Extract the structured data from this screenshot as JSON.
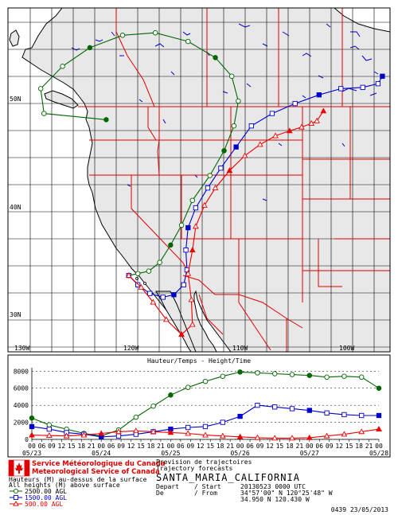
{
  "map": {
    "lat_labels": [
      {
        "text": "50N",
        "lat": 50
      },
      {
        "text": "40N",
        "lat": 40
      },
      {
        "text": "30N",
        "lat": 30
      }
    ],
    "lon_labels": [
      {
        "text": "130W",
        "lon": -130
      },
      {
        "text": "120W",
        "lon": -120
      },
      {
        "text": "110W",
        "lon": -110
      },
      {
        "text": "100W",
        "lon": -100
      }
    ],
    "colors": {
      "land": "#e8e8e8",
      "water": "#ffffff",
      "coast": "#000000",
      "state": "#e00000",
      "grid": "#000000",
      "lake": "#0000cc"
    }
  },
  "chart_data": {
    "type": "trajectory",
    "title": "Hauteur/Temps - Height/Time",
    "yticks": [
      0,
      2000,
      4000,
      6000,
      8000
    ],
    "ylim": [
      0,
      8400
    ],
    "xlim": [
      0,
      120
    ],
    "xticks": [
      "00",
      "06",
      "09",
      "12",
      "15",
      "18",
      "21",
      "00",
      "06",
      "09",
      "12",
      "15",
      "18",
      "21",
      "00",
      "06",
      "09",
      "12",
      "15",
      "18",
      "21",
      "00",
      "06",
      "09",
      "12",
      "15",
      "18",
      "21",
      "00",
      "06",
      "09",
      "12",
      "15",
      "18",
      "21",
      "00"
    ],
    "date_labels": [
      {
        "text": "05/23",
        "hour": 0
      },
      {
        "text": "05/24",
        "hour": 24
      },
      {
        "text": "05/25",
        "hour": 48
      },
      {
        "text": "05/26",
        "hour": 72
      },
      {
        "text": "05/27",
        "hour": 96
      },
      {
        "text": "05/28",
        "hour": 120
      }
    ],
    "series": [
      {
        "name": "2500.00 AGL",
        "color": "#006600",
        "marker": "circle",
        "hours": [
          0,
          6,
          12,
          18,
          24,
          30,
          36,
          42,
          48,
          54,
          60,
          66,
          72,
          78,
          84,
          90,
          96,
          102,
          108,
          114,
          120
        ],
        "heights": [
          2500,
          1700,
          1200,
          700,
          400,
          1100,
          2600,
          3900,
          5200,
          6100,
          6800,
          7400,
          7900,
          7800,
          7700,
          7600,
          7500,
          7300,
          7400,
          7300,
          6000
        ],
        "track": [
          [
            34.95,
            -120.43
          ],
          [
            35.1,
            -119.6
          ],
          [
            35.3,
            -118.6
          ],
          [
            36.0,
            -117.6
          ],
          [
            37.4,
            -116.6
          ],
          [
            39.0,
            -115.6
          ],
          [
            41.0,
            -114.6
          ],
          [
            43.0,
            -113.0
          ],
          [
            45.0,
            -111.7
          ],
          [
            47.0,
            -110.8
          ],
          [
            49.0,
            -110.4
          ],
          [
            51.0,
            -111.0
          ],
          [
            52.5,
            -112.5
          ],
          [
            53.8,
            -115.0
          ],
          [
            54.5,
            -118.0
          ],
          [
            54.3,
            -121.0
          ],
          [
            53.3,
            -124.0
          ],
          [
            51.8,
            -126.5
          ],
          [
            50.0,
            -128.5
          ],
          [
            48.0,
            -128.2
          ],
          [
            47.5,
            -122.5
          ]
        ]
      },
      {
        "name": "1500.00 AGL",
        "color": "#0000cc",
        "marker": "square",
        "hours": [
          0,
          6,
          12,
          18,
          24,
          30,
          36,
          42,
          48,
          54,
          60,
          66,
          72,
          78,
          84,
          90,
          96,
          102,
          108,
          114,
          120
        ],
        "heights": [
          1500,
          1200,
          800,
          600,
          300,
          400,
          600,
          900,
          1200,
          1400,
          1500,
          2000,
          2700,
          4000,
          3800,
          3600,
          3400,
          3100,
          2900,
          2800,
          2800
        ],
        "track": [
          [
            34.95,
            -120.43
          ],
          [
            34.2,
            -119.6
          ],
          [
            33.5,
            -118.5
          ],
          [
            33.2,
            -117.3
          ],
          [
            33.4,
            -116.3
          ],
          [
            34.2,
            -115.4
          ],
          [
            35.4,
            -115.1
          ],
          [
            37.0,
            -115.2
          ],
          [
            38.8,
            -115.0
          ],
          [
            40.4,
            -114.3
          ],
          [
            42.0,
            -113.2
          ],
          [
            43.6,
            -112.0
          ],
          [
            45.3,
            -110.6
          ],
          [
            47.0,
            -109.2
          ],
          [
            48.0,
            -107.3
          ],
          [
            48.8,
            -105.2
          ],
          [
            49.5,
            -103.0
          ],
          [
            50.0,
            -101.0
          ],
          [
            50.1,
            -99.0
          ],
          [
            50.4,
            -97.6
          ],
          [
            51.0,
            -97.2
          ]
        ]
      },
      {
        "name": "500.00 AGL",
        "color": "#ee0000",
        "marker": "triangle",
        "hours": [
          0,
          6,
          12,
          18,
          24,
          30,
          36,
          42,
          48,
          54,
          60,
          66,
          72,
          78,
          84,
          90,
          96,
          102,
          108,
          114,
          120
        ],
        "heights": [
          500,
          450,
          400,
          500,
          700,
          900,
          1000,
          900,
          800,
          700,
          500,
          400,
          300,
          200,
          150,
          150,
          200,
          400,
          600,
          900,
          1200
        ],
        "track": [
          [
            34.95,
            -120.43
          ],
          [
            34.0,
            -119.3
          ],
          [
            32.8,
            -118.2
          ],
          [
            31.4,
            -117.0
          ],
          [
            30.2,
            -115.6
          ],
          [
            31.0,
            -114.6
          ],
          [
            33.0,
            -114.7
          ],
          [
            35.1,
            -115.0
          ],
          [
            37.0,
            -114.6
          ],
          [
            38.9,
            -114.3
          ],
          [
            40.6,
            -113.5
          ],
          [
            42.0,
            -112.5
          ],
          [
            43.4,
            -111.2
          ],
          [
            44.6,
            -109.8
          ],
          [
            45.5,
            -108.4
          ],
          [
            46.2,
            -107.0
          ],
          [
            46.6,
            -105.7
          ],
          [
            46.9,
            -104.6
          ],
          [
            47.2,
            -103.7
          ],
          [
            47.4,
            -103.2
          ],
          [
            48.2,
            -102.6
          ]
        ]
      }
    ]
  },
  "footer": {
    "org_fr": "Service Météorologique du Canada",
    "org_en": "Meteorological Service of Canada",
    "note_fr": "Hauteurs (M) au-dessus de la surface",
    "note_en": "All heights (M) above surface",
    "product_fr": "Prevision de trajectoires",
    "product_en": "Trajectory forecasts",
    "station": "SANTA_MARIA_CALIFORNIA",
    "depart_label_fr": "Depart",
    "depart_label_en": "/ Start",
    "depart_value": "20130523 0000 UTC",
    "from_label_fr": "De",
    "from_label_en": "/ From",
    "from_value_dms": "34°57'00\" N 120°25'48\" W",
    "from_value_dec": "34.950 N 120.430 W",
    "legend": [
      "2500.00 AGL",
      "1500.00 AGL",
      "500.00 AGL"
    ],
    "stamp": "0439 23/05/2013"
  }
}
